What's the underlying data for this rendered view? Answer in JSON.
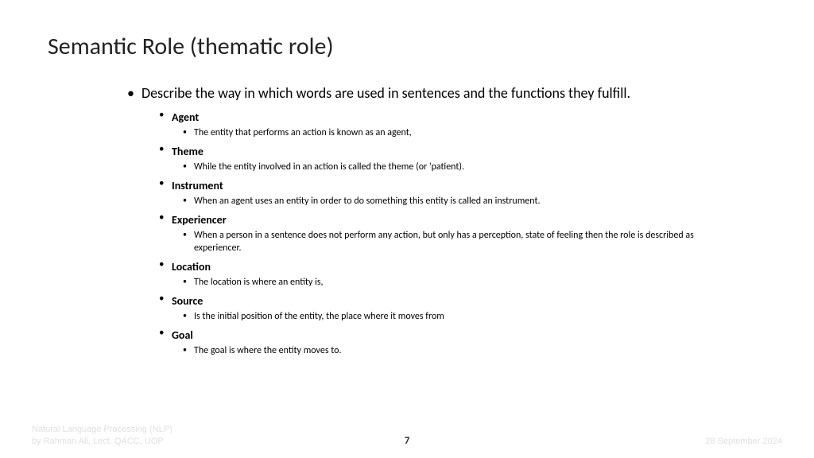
{
  "title": "Semantic Role (thematic role)",
  "intro": "Describe the way in which words are used in sentences and the functions they fulfill.",
  "roles": [
    {
      "name": "Agent",
      "desc": "The entity that performs an action is known as an agent,"
    },
    {
      "name": "Theme",
      "desc": "While the entity involved in an action is called the theme (or 'patient)."
    },
    {
      "name": "Instrument",
      "desc": "When an agent uses an entity in order to do something this entity is called an instrument."
    },
    {
      "name": "Experiencer",
      "desc": "When a person in a sentence does not perform any action, but only has a perception, state of feeling then the role is described as experiencer."
    },
    {
      "name": "Location",
      "desc": "The location is where an entity is,"
    },
    {
      "name": "Source",
      "desc": "Is the initial position of the entity, the place where it moves from"
    },
    {
      "name": "Goal",
      "desc": "The goal is where the entity moves to."
    }
  ],
  "footer": {
    "course": "Natural Language Processing (NLP)",
    "author": "by Rahman Ali, Lect. QACC, UOP",
    "page": "7",
    "date": "28 September 2024"
  }
}
